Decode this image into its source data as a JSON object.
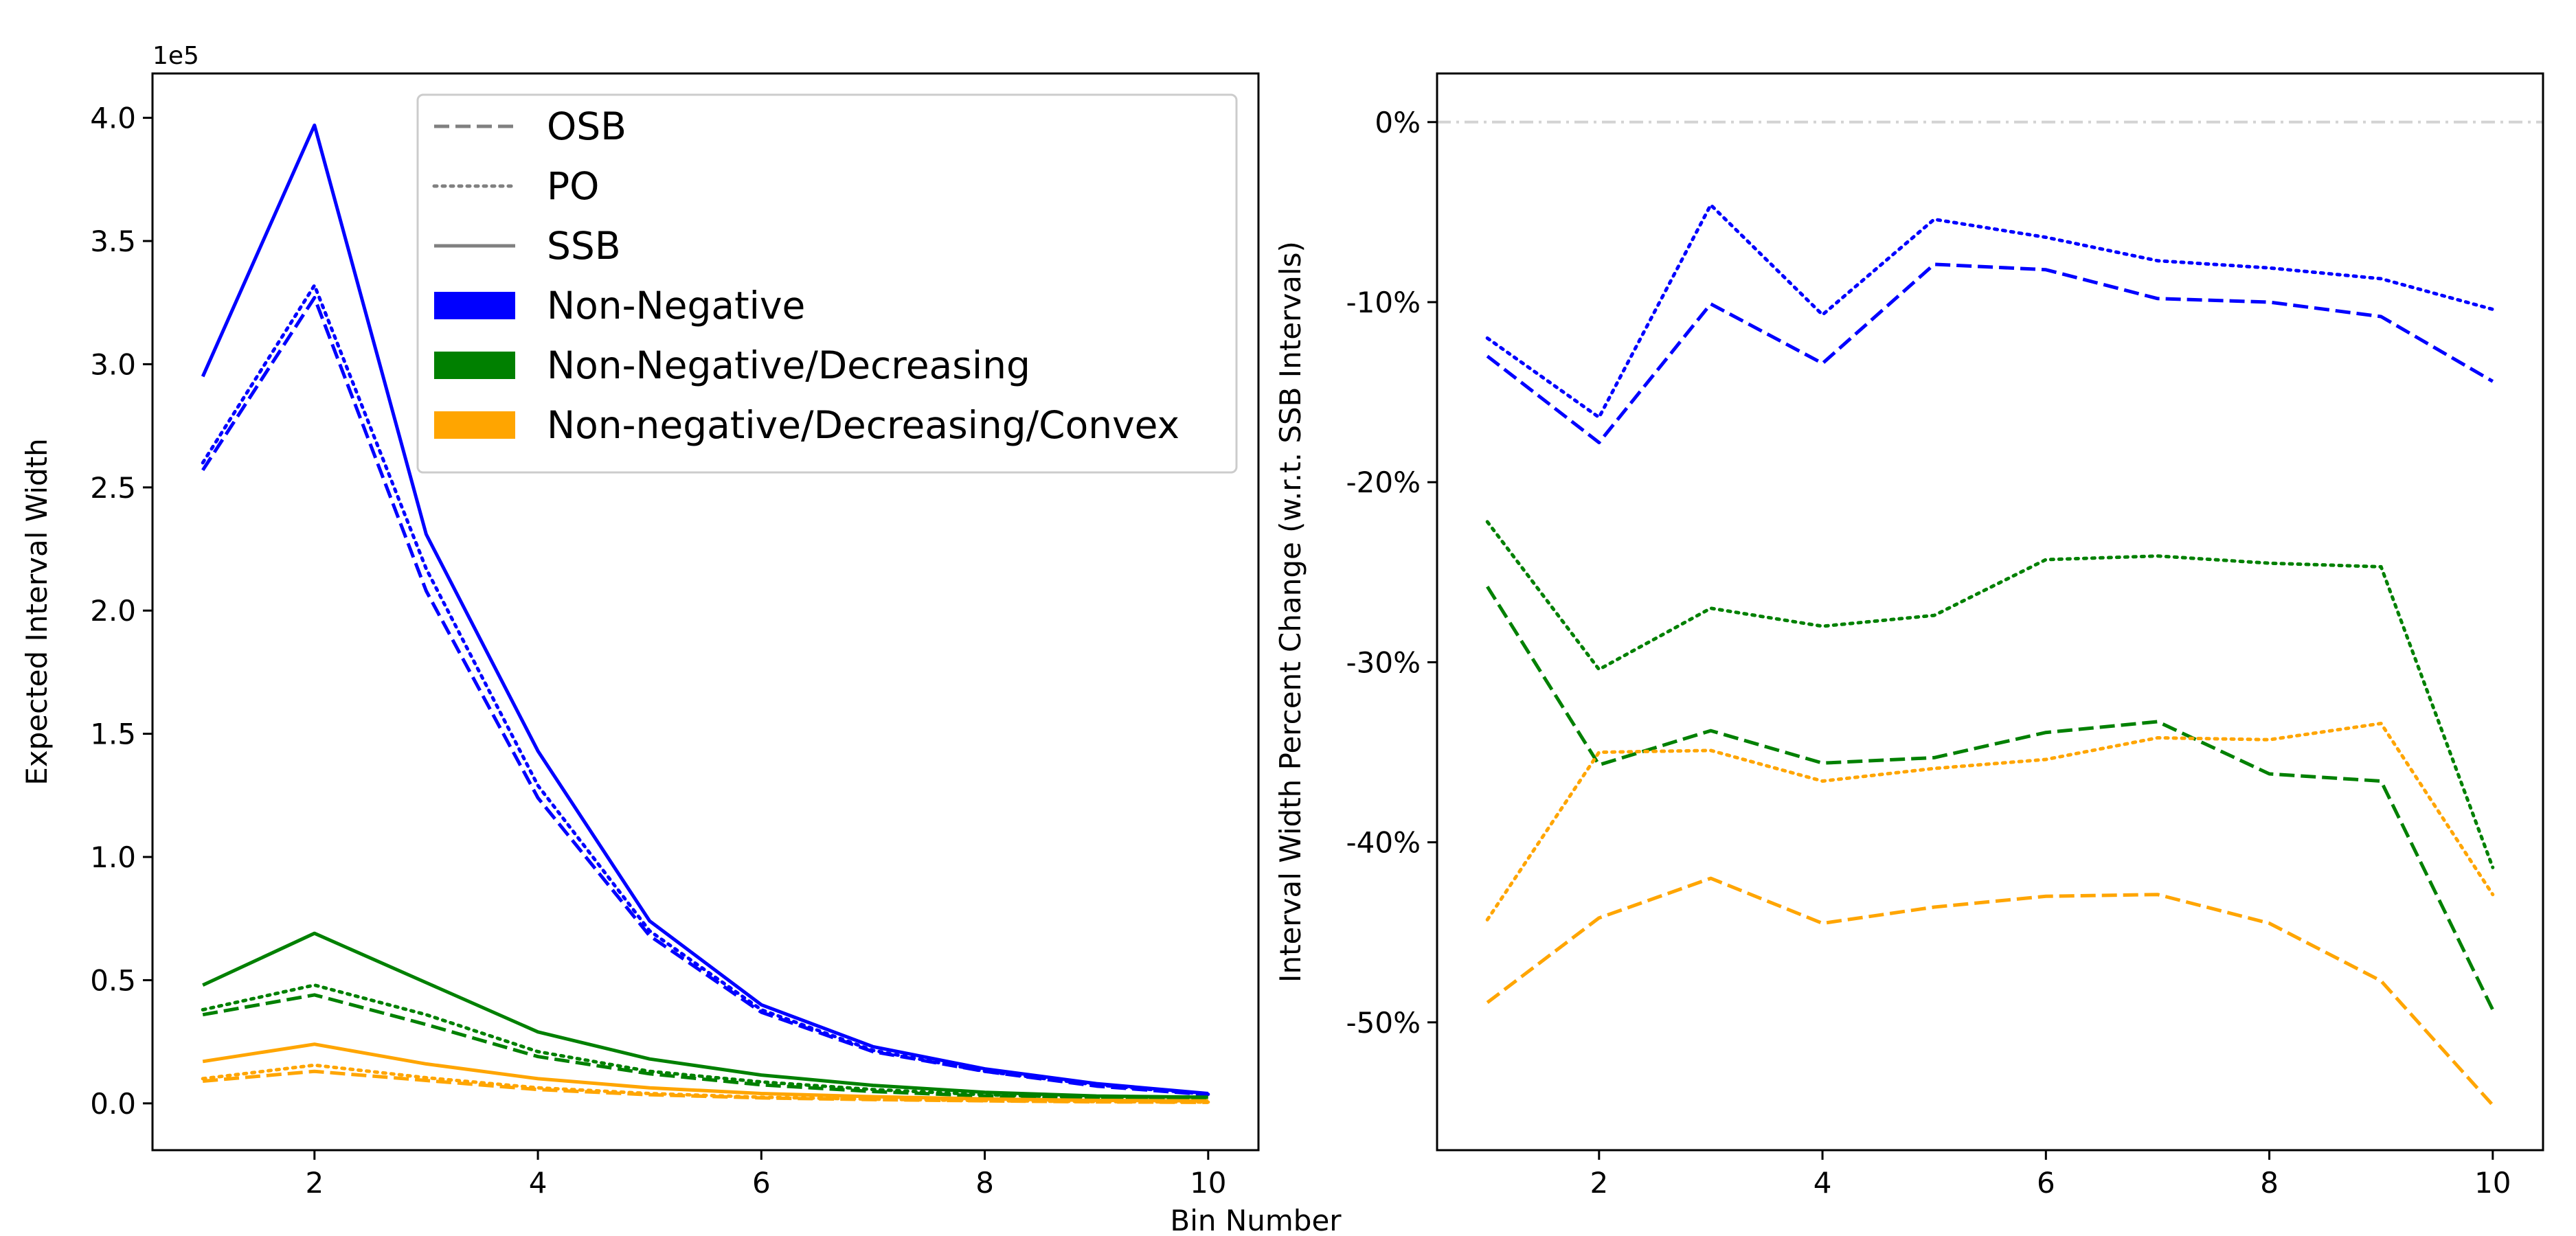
{
  "figure": {
    "xlabel": "Bin Number"
  },
  "legend": {
    "line_styles": [
      {
        "label": "OSB",
        "dash": "dashed"
      },
      {
        "label": "PO",
        "dash": "dotted"
      },
      {
        "label": "SSB",
        "dash": "solid"
      }
    ],
    "constraints": [
      {
        "label": "Non-Negative",
        "color": "#0000ff"
      },
      {
        "label": "Non-Negative/Decreasing",
        "color": "#008000"
      },
      {
        "label": "Non-negative/Decreasing/Convex",
        "color": "#ffa500"
      }
    ]
  },
  "chart_data": [
    {
      "type": "line",
      "ylabel": "Expected Interval Width",
      "y_scale_label": "1e5",
      "xlim": [
        0.55,
        10.45
      ],
      "ylim": [
        -0.19,
        4.18
      ],
      "xticks": [
        2,
        4,
        6,
        8,
        10
      ],
      "xtick_labels": [
        "2",
        "4",
        "6",
        "8",
        "10"
      ],
      "yticks": [
        0.0,
        0.5,
        1.0,
        1.5,
        2.0,
        2.5,
        3.0,
        3.5,
        4.0
      ],
      "ytick_labels": [
        "0.0",
        "0.5",
        "1.0",
        "1.5",
        "2.0",
        "2.5",
        "3.0",
        "3.5",
        "4.0"
      ],
      "x": [
        1,
        2,
        3,
        4,
        5,
        6,
        7,
        8,
        9,
        10
      ],
      "series": [
        {
          "name": "Non-Negative SSB",
          "color": "#0000ff",
          "dash": "solid",
          "values": [
            2.95,
            3.97,
            2.31,
            1.43,
            0.74,
            0.4,
            0.23,
            0.14,
            0.08,
            0.04
          ]
        },
        {
          "name": "Non-Negative OSB",
          "color": "#0000ff",
          "dash": "dashed",
          "values": [
            2.57,
            3.27,
            2.08,
            1.24,
            0.68,
            0.37,
            0.21,
            0.13,
            0.07,
            0.035
          ]
        },
        {
          "name": "Non-Negative PO",
          "color": "#0000ff",
          "dash": "dotted",
          "values": [
            2.6,
            3.32,
            2.17,
            1.29,
            0.7,
            0.38,
            0.215,
            0.13,
            0.075,
            0.037
          ]
        },
        {
          "name": "Non-Negative/Decreasing SSB",
          "color": "#008000",
          "dash": "solid",
          "values": [
            0.48,
            0.69,
            0.49,
            0.29,
            0.18,
            0.115,
            0.073,
            0.045,
            0.03,
            0.025
          ]
        },
        {
          "name": "Non-Negative/Decreasing OSB",
          "color": "#008000",
          "dash": "dashed",
          "values": [
            0.36,
            0.44,
            0.32,
            0.19,
            0.12,
            0.075,
            0.048,
            0.03,
            0.02,
            0.013
          ]
        },
        {
          "name": "Non-Negative/Decreasing PO",
          "color": "#008000",
          "dash": "dotted",
          "values": [
            0.38,
            0.48,
            0.36,
            0.21,
            0.13,
            0.087,
            0.056,
            0.035,
            0.023,
            0.015
          ]
        },
        {
          "name": "Non-negative/Decreasing/Convex SSB",
          "color": "#ffa500",
          "dash": "solid",
          "values": [
            0.17,
            0.24,
            0.16,
            0.1,
            0.063,
            0.04,
            0.027,
            0.018,
            0.012,
            0.01
          ]
        },
        {
          "name": "Non-negative/Decreasing/Convex OSB",
          "color": "#ffa500",
          "dash": "dashed",
          "values": [
            0.09,
            0.13,
            0.093,
            0.056,
            0.035,
            0.022,
            0.015,
            0.01,
            0.006,
            0.004
          ]
        },
        {
          "name": "Non-negative/Decreasing/Convex PO",
          "color": "#ffa500",
          "dash": "dotted",
          "values": [
            0.1,
            0.155,
            0.104,
            0.063,
            0.04,
            0.025,
            0.017,
            0.011,
            0.007,
            0.005
          ]
        }
      ]
    },
    {
      "type": "line",
      "ylabel": "Interval Width Percent Change (w.r.t. SSB Intervals)",
      "xlim": [
        0.55,
        10.45
      ],
      "ylim": [
        -57.1,
        2.7
      ],
      "xticks": [
        2,
        4,
        6,
        8,
        10
      ],
      "xtick_labels": [
        "2",
        "4",
        "6",
        "8",
        "10"
      ],
      "yticks": [
        0,
        -10,
        -20,
        -30,
        -40,
        -50
      ],
      "ytick_labels": [
        "0%",
        "-10%",
        "-20%",
        "-30%",
        "-40%",
        "-50%"
      ],
      "reference_line": {
        "y": 0,
        "color": "#d3d3d3",
        "dash": "dashdot"
      },
      "x": [
        1,
        2,
        3,
        4,
        5,
        6,
        7,
        8,
        9,
        10
      ],
      "series": [
        {
          "name": "Non-Negative OSB",
          "color": "#0000ff",
          "dash": "dashed",
          "values": [
            -13.0,
            -17.8,
            -10.1,
            -13.4,
            -7.9,
            -8.2,
            -9.8,
            -10.0,
            -10.8,
            -14.4
          ]
        },
        {
          "name": "Non-Negative PO",
          "color": "#0000ff",
          "dash": "dotted",
          "values": [
            -12.0,
            -16.4,
            -4.6,
            -10.7,
            -5.4,
            -6.4,
            -7.7,
            -8.1,
            -8.7,
            -10.4
          ]
        },
        {
          "name": "Non-Negative/Decreasing OSB",
          "color": "#008000",
          "dash": "dashed",
          "values": [
            -25.8,
            -35.7,
            -33.8,
            -35.6,
            -35.3,
            -33.9,
            -33.3,
            -36.2,
            -36.6,
            -49.3
          ]
        },
        {
          "name": "Non-Negative/Decreasing PO",
          "color": "#008000",
          "dash": "dotted",
          "values": [
            -22.2,
            -30.4,
            -27.0,
            -28.0,
            -27.4,
            -24.3,
            -24.1,
            -24.5,
            -24.7,
            -41.4
          ]
        },
        {
          "name": "Non-negative/Decreasing/Convex OSB",
          "color": "#ffa500",
          "dash": "dashed",
          "values": [
            -48.9,
            -44.2,
            -42.0,
            -44.5,
            -43.6,
            -43.0,
            -42.9,
            -44.5,
            -47.7,
            -54.6
          ]
        },
        {
          "name": "Non-negative/Decreasing/Convex PO",
          "color": "#ffa500",
          "dash": "dotted",
          "values": [
            -44.3,
            -35.0,
            -34.9,
            -36.6,
            -35.9,
            -35.4,
            -34.2,
            -34.3,
            -33.4,
            -42.9
          ]
        }
      ]
    }
  ]
}
